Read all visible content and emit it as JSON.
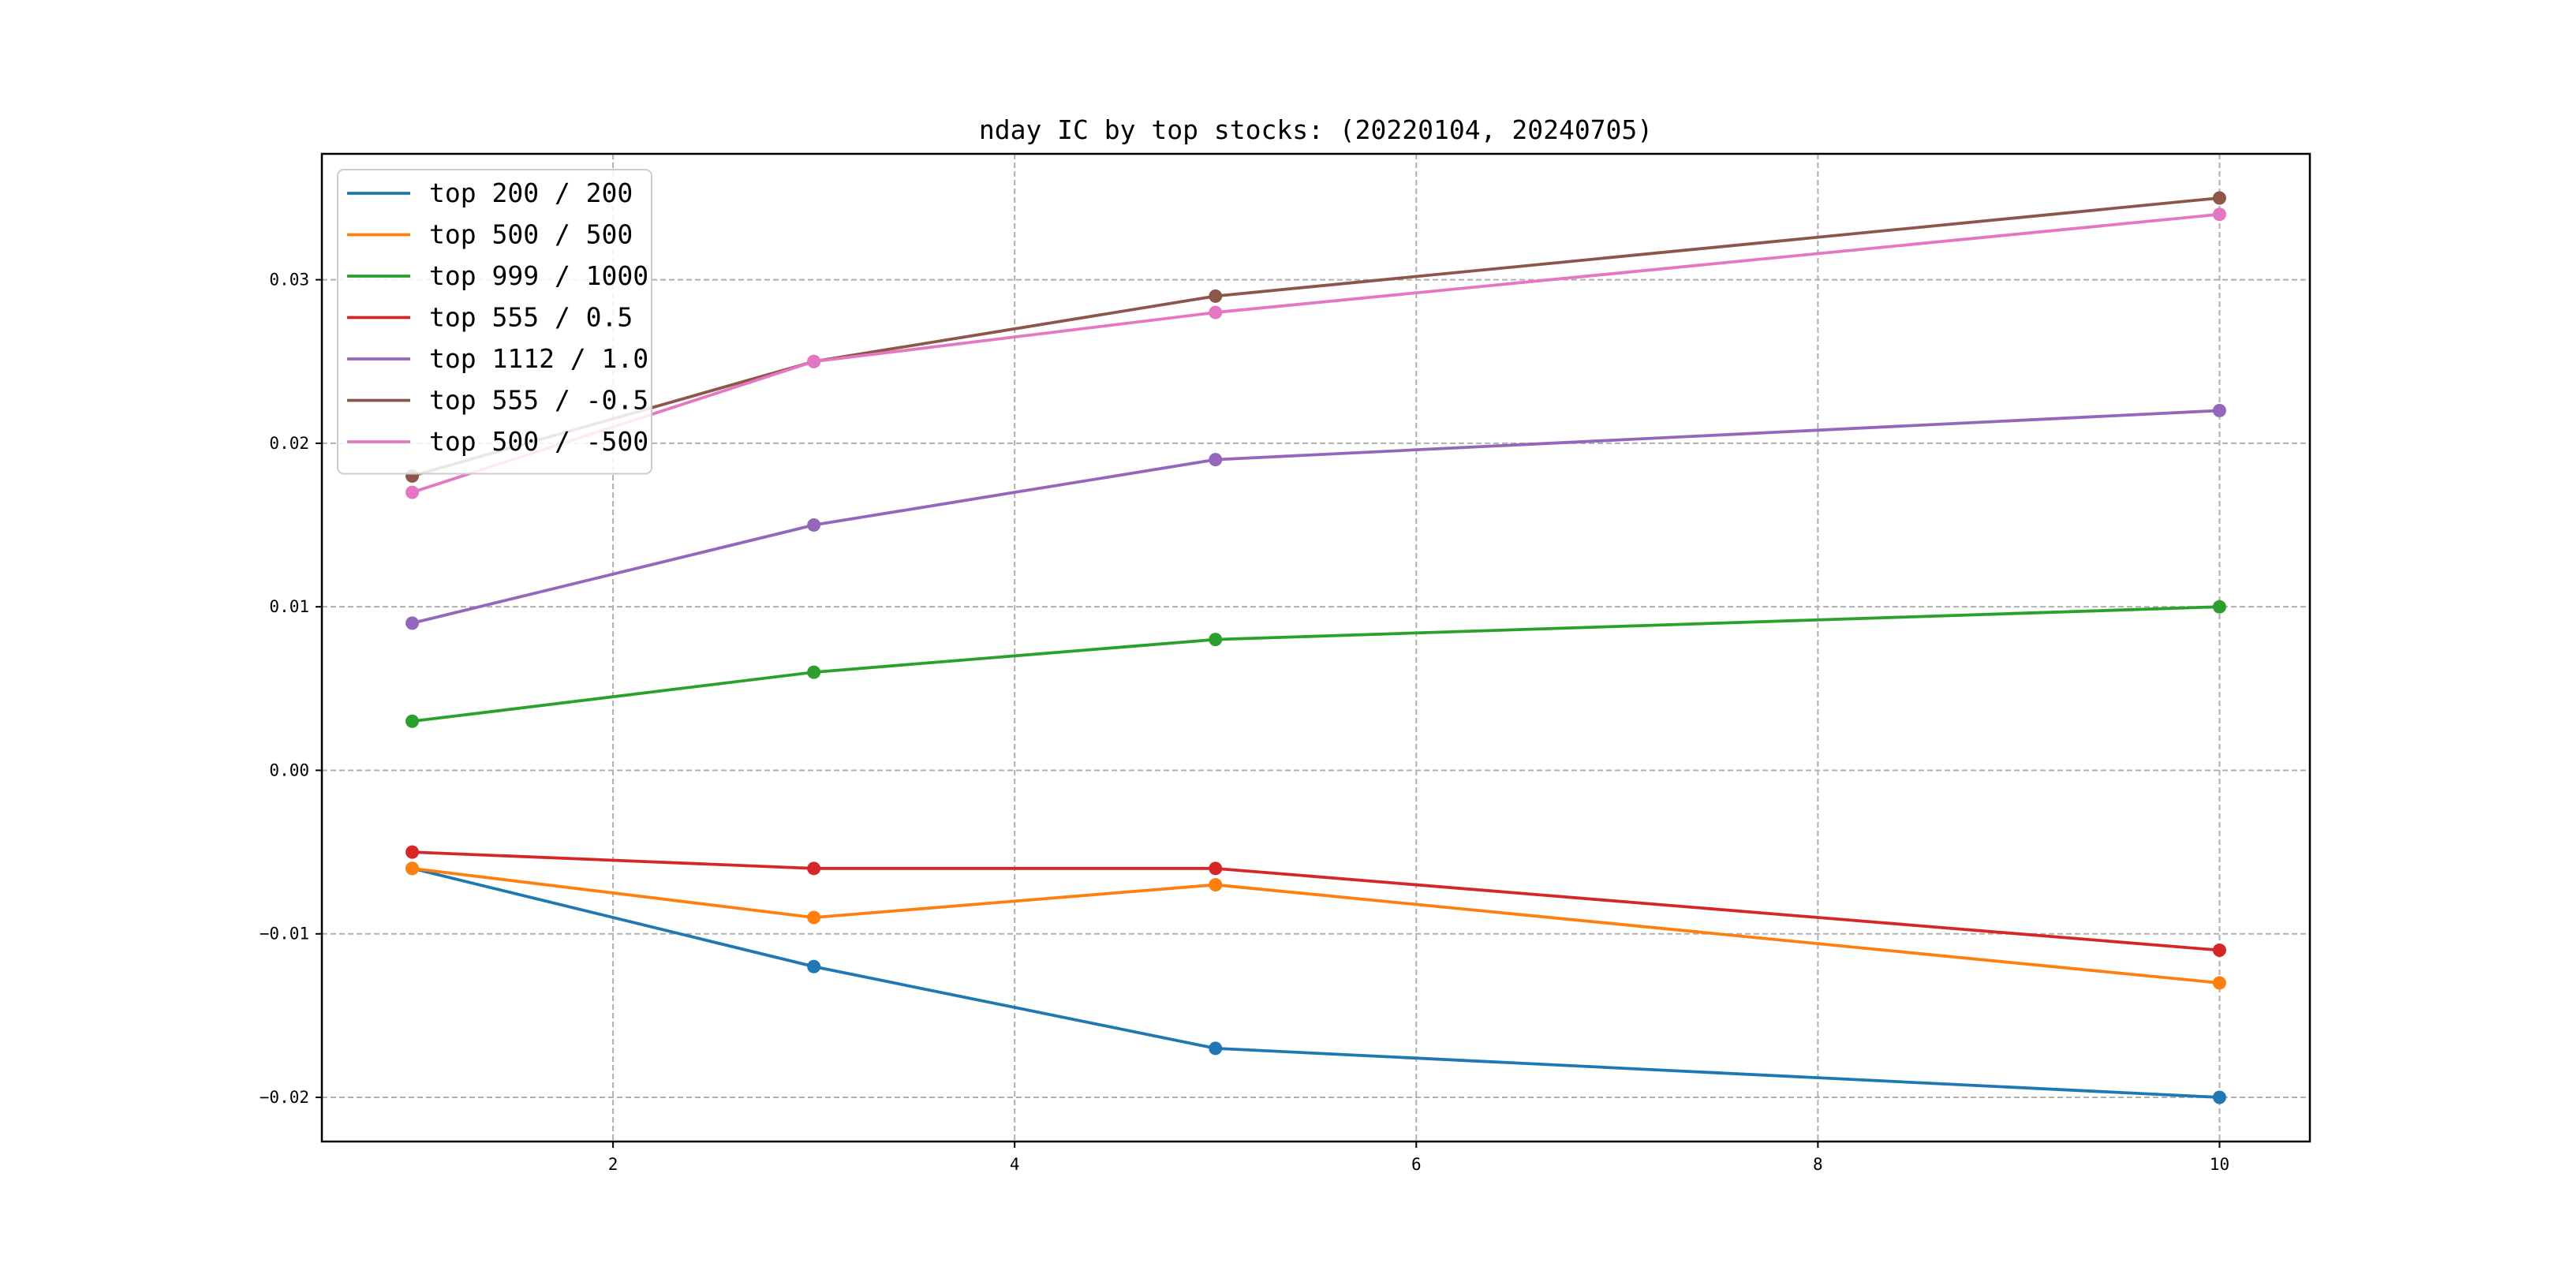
{
  "chart_data": {
    "type": "line",
    "title": "nday IC by top stocks: (20220104, 20240705)",
    "xlabel": "",
    "ylabel": "",
    "x": [
      1,
      3,
      5,
      10
    ],
    "xlim": [
      0.55,
      10.45
    ],
    "ylim": [
      -0.0227,
      0.0377
    ],
    "xticks": [
      2,
      4,
      6,
      8,
      10
    ],
    "xtick_labels": [
      "2",
      "4",
      "6",
      "8",
      "10"
    ],
    "yticks": [
      -0.02,
      -0.01,
      0.0,
      0.01,
      0.02,
      0.03
    ],
    "ytick_labels": [
      "−0.02",
      "−0.01",
      "0.00",
      "0.01",
      "0.02",
      "0.03"
    ],
    "grid": true,
    "legend_position": "top-left",
    "markers": true,
    "series": [
      {
        "name": "top 200 / 200",
        "color": "#1f77b4",
        "values": [
          -0.006,
          -0.012,
          -0.017,
          -0.02
        ]
      },
      {
        "name": "top 500 / 500",
        "color": "#ff7f0e",
        "values": [
          -0.006,
          -0.009,
          -0.007,
          -0.013
        ]
      },
      {
        "name": "top 999 / 1000",
        "color": "#2ca02c",
        "values": [
          0.003,
          0.006,
          0.008,
          0.01
        ]
      },
      {
        "name": "top 555 / 0.5",
        "color": "#d62728",
        "values": [
          -0.005,
          -0.006,
          -0.006,
          -0.011
        ]
      },
      {
        "name": "top 1112 / 1.0",
        "color": "#9467bd",
        "values": [
          0.009,
          0.015,
          0.019,
          0.022
        ]
      },
      {
        "name": "top 555 / -0.5",
        "color": "#8c564b",
        "values": [
          0.018,
          0.025,
          0.029,
          0.035
        ]
      },
      {
        "name": "top 500 / -500",
        "color": "#e377c2",
        "values": [
          0.017,
          0.025,
          0.028,
          0.034
        ]
      }
    ]
  }
}
